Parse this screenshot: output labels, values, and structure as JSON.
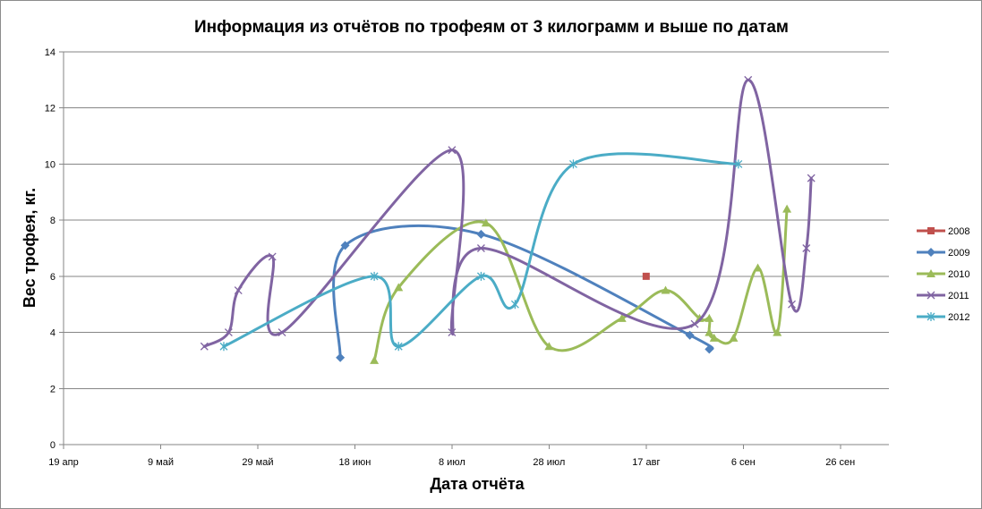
{
  "chart_data": {
    "type": "scatter",
    "title": "Информация из отчётов по трофеям от 3 килограмм и выше по датам",
    "xlabel": "Дата отчёта",
    "ylabel": "Вес трофея, кг.",
    "xlim": [
      "2012-04-19",
      "2012-10-06"
    ],
    "ylim": [
      0,
      14
    ],
    "x_ticks": [
      {
        "date": "2012-04-19",
        "label": "19 апр"
      },
      {
        "date": "2012-05-09",
        "label": "9 май"
      },
      {
        "date": "2012-05-29",
        "label": "29 май"
      },
      {
        "date": "2012-06-18",
        "label": "18 июн"
      },
      {
        "date": "2012-07-08",
        "label": "8 июл"
      },
      {
        "date": "2012-07-28",
        "label": "28 июл"
      },
      {
        "date": "2012-08-17",
        "label": "17 авг"
      },
      {
        "date": "2012-09-06",
        "label": "6 сен"
      },
      {
        "date": "2012-09-26",
        "label": "26 сен"
      }
    ],
    "y_ticks": [
      0,
      2,
      4,
      6,
      8,
      10,
      12,
      14
    ],
    "grid": "horizontal",
    "legend_position": "right",
    "series": [
      {
        "name": "2008",
        "color": "#C0504D",
        "marker": "square",
        "smooth": true,
        "points": [
          [
            "2012-08-17",
            6.0
          ]
        ]
      },
      {
        "name": "2009",
        "color": "#4F81BD",
        "marker": "diamond",
        "smooth": true,
        "points": [
          [
            "2012-06-15",
            3.1
          ],
          [
            "2012-06-16",
            7.1
          ],
          [
            "2012-07-14",
            7.5
          ],
          [
            "2012-08-26",
            3.9
          ],
          [
            "2012-08-30",
            3.4
          ]
        ]
      },
      {
        "name": "2010",
        "color": "#9BBB59",
        "marker": "triangle",
        "smooth": true,
        "points": [
          [
            "2012-06-22",
            3.0
          ],
          [
            "2012-06-27",
            5.6
          ],
          [
            "2012-07-15",
            7.9
          ],
          [
            "2012-07-28",
            3.5
          ],
          [
            "2012-08-12",
            4.5
          ],
          [
            "2012-08-21",
            5.5
          ],
          [
            "2012-08-28",
            4.5
          ],
          [
            "2012-08-30",
            4.5
          ],
          [
            "2012-08-30",
            4.0
          ],
          [
            "2012-08-31",
            3.8
          ],
          [
            "2012-09-04",
            3.8
          ],
          [
            "2012-09-09",
            6.3
          ],
          [
            "2012-09-13",
            4.0
          ],
          [
            "2012-09-15",
            8.4
          ]
        ]
      },
      {
        "name": "2011",
        "color": "#8064A2",
        "marker": "x",
        "smooth": true,
        "points": [
          [
            "2012-05-18",
            3.5
          ],
          [
            "2012-05-23",
            4.0
          ],
          [
            "2012-05-25",
            5.5
          ],
          [
            "2012-06-01",
            6.7
          ],
          [
            "2012-06-03",
            4.0
          ],
          [
            "2012-07-08",
            10.5
          ],
          [
            "2012-07-08",
            4.0
          ],
          [
            "2012-07-14",
            7.0
          ],
          [
            "2012-08-27",
            4.3
          ],
          [
            "2012-09-07",
            13.0
          ],
          [
            "2012-09-16",
            5.0
          ],
          [
            "2012-09-19",
            7.0
          ],
          [
            "2012-09-20",
            9.5
          ]
        ]
      },
      {
        "name": "2012",
        "color": "#4BACC6",
        "marker": "asterisk",
        "smooth": true,
        "points": [
          [
            "2012-05-22",
            3.5
          ],
          [
            "2012-06-22",
            6.0
          ],
          [
            "2012-06-27",
            3.5
          ],
          [
            "2012-07-14",
            6.0
          ],
          [
            "2012-07-21",
            5.0
          ],
          [
            "2012-08-02",
            10.0
          ],
          [
            "2012-09-05",
            10.0
          ]
        ]
      }
    ]
  }
}
